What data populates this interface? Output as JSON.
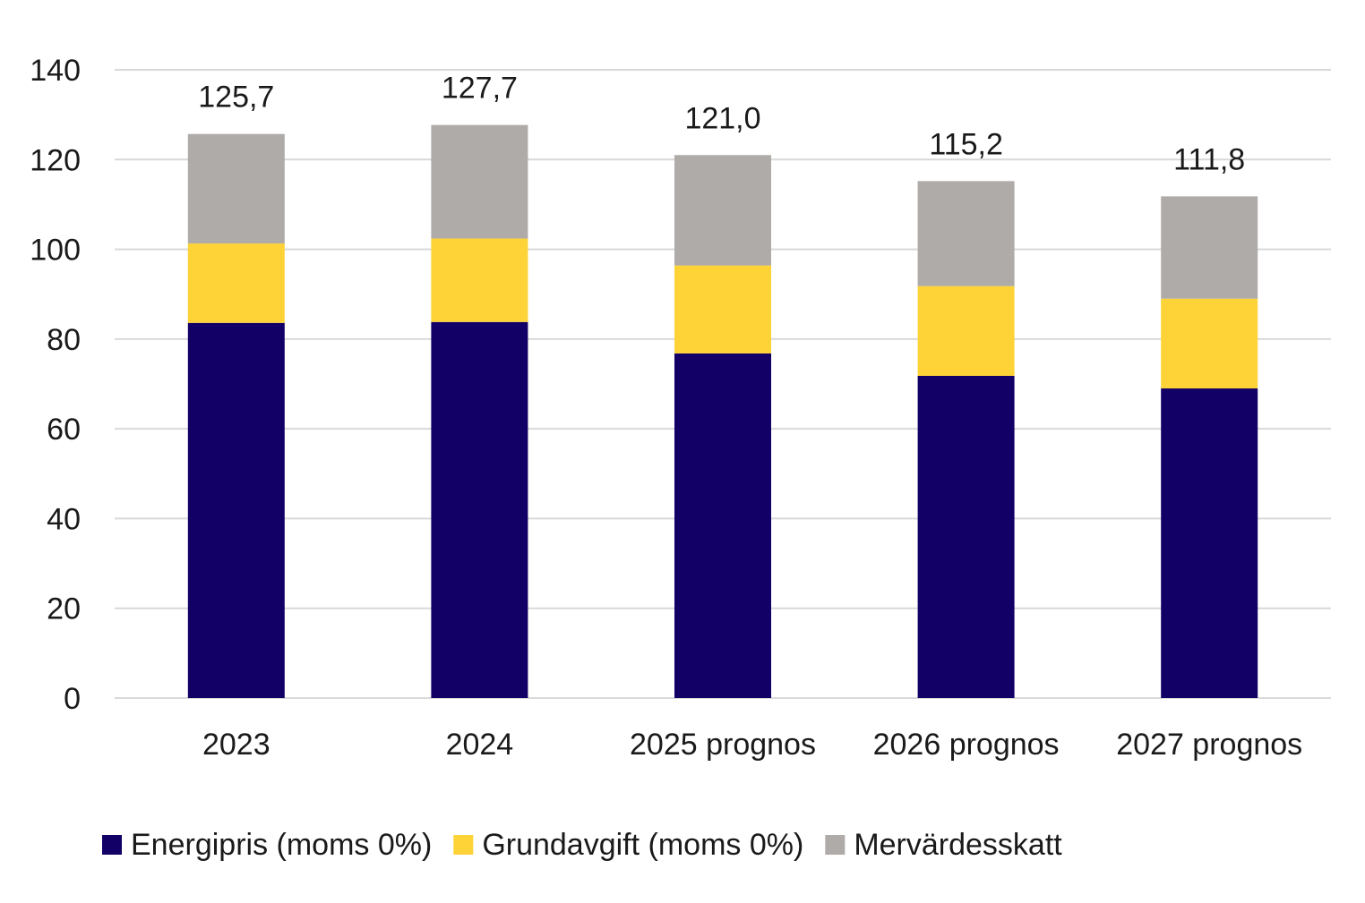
{
  "chart_data": {
    "type": "bar",
    "stacked": true,
    "title": "",
    "xlabel": "",
    "ylabel": "",
    "ylim": [
      0,
      140
    ],
    "yticks": [
      0,
      20,
      40,
      60,
      80,
      100,
      120,
      140
    ],
    "grid": true,
    "legend_position": "bottom",
    "categories": [
      "2023",
      "2024",
      "2025 prognos",
      "2026 prognos",
      "2027 prognos"
    ],
    "series": [
      {
        "name": "Energipris (moms 0%)",
        "color": "#120066",
        "values": [
          83.6,
          83.8,
          76.8,
          71.8,
          69.0
        ]
      },
      {
        "name": "Grundavgift (moms 0%)",
        "color": "#fed337",
        "values": [
          17.7,
          18.6,
          19.6,
          20.0,
          20.0
        ]
      },
      {
        "name": "Mervärdesskatt",
        "color": "#afaba9",
        "values": [
          24.4,
          25.3,
          24.6,
          23.4,
          22.8
        ]
      }
    ],
    "totals": [
      "125,7",
      "127,7",
      "121,0",
      "115,2",
      "111,8"
    ]
  }
}
